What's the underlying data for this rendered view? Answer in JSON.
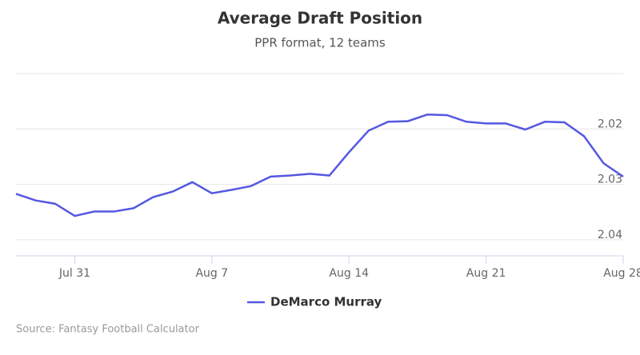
{
  "chart_data": {
    "type": "line",
    "title": "Average Draft Position",
    "subtitle": "PPR format, 12 teams",
    "source": "Source: Fantasy Football Calculator",
    "categories": [
      null,
      null,
      null,
      "Jul 31",
      null,
      null,
      null,
      null,
      null,
      null,
      "Aug 7",
      null,
      null,
      null,
      null,
      null,
      null,
      "Aug 14",
      null,
      null,
      null,
      null,
      null,
      null,
      "Aug 21",
      null,
      null,
      null,
      null,
      null,
      null,
      "Aug 28"
    ],
    "series": [
      {
        "name": "DeMarco Murray",
        "color": "#5558e0",
        "values": [
          2.0317,
          2.0329,
          2.0335,
          2.0357,
          2.0349,
          2.0349,
          2.0343,
          2.0323,
          2.0313,
          2.0296,
          2.0316,
          2.031,
          2.0303,
          2.0286,
          2.0284,
          2.0281,
          2.0284,
          2.0242,
          2.0203,
          2.0187,
          2.0186,
          2.0174,
          2.0175,
          2.0187,
          2.019,
          2.019,
          2.0201,
          2.0187,
          2.0188,
          2.0213,
          2.0262,
          2.0286
        ]
      }
    ],
    "ylim": [
      2.01,
      2.0429
    ],
    "reversed": true,
    "yticks": [
      2.02,
      2.03,
      2.04
    ],
    "grid": true
  }
}
